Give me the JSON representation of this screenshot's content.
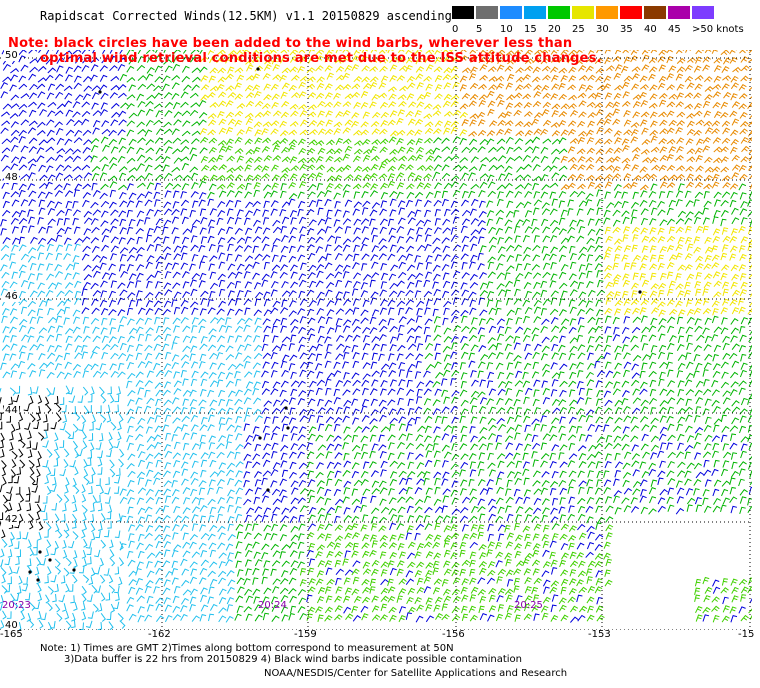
{
  "title": "Rapidscat Corrected Winds(12.5KM) v1.1 20150829 ascending",
  "note": {
    "line1": "Note: black circles have been added to the wind barbs, wherever less than",
    "line2": "optimal wind retrieval conditions are met due to the ISS attitude changes."
  },
  "colorbar": {
    "labels": [
      "0",
      "5",
      "10",
      "15",
      "20",
      "25",
      "30",
      "35",
      "40",
      "45",
      ">50 knots"
    ],
    "colors": [
      "#000000",
      "#6e6e6e",
      "#1e8cff",
      "#00a0f0",
      "#00c800",
      "#e6e600",
      "#ff9900",
      "#ff0000",
      "#8b3a00",
      "#aa00aa",
      "#7d3cff"
    ]
  },
  "map": {
    "lat_labels": [
      "50",
      "48",
      "46",
      "44",
      "42",
      "40"
    ],
    "lon_labels": [
      "-165",
      "-162",
      "-159",
      "-156",
      "-153",
      "-15"
    ],
    "time_labels": [
      "20:23",
      "20:24",
      "20:25"
    ],
    "wind_colors": {
      "black": "#000000",
      "cyan": "#22c0ee",
      "blue": "#0000dd",
      "green": "#00b400",
      "lime": "#40d000",
      "yellow": "#f2e600",
      "orange": "#e88a00"
    }
  },
  "footnote": {
    "line1": "Note: 1) Times are GMT 2)Times along bottom correspond to measurement at 50N",
    "line2": "3)Data buffer is 22 hrs from 20150829 4) Black wind barbs indicate possible contamination"
  },
  "credit": "NOAA/NESDIS/Center for Satellite Applications and Research"
}
